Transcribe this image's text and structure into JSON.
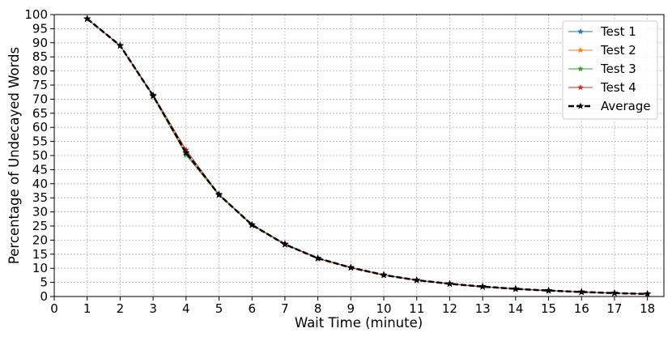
{
  "chart_data": {
    "type": "line",
    "title": "",
    "xlabel": "Wait Time (minute)",
    "ylabel": "Percentage of Undecayed Words",
    "xlim": [
      0,
      18.5
    ],
    "ylim": [
      0,
      100
    ],
    "xticks": [
      0,
      1,
      2,
      3,
      4,
      5,
      6,
      7,
      8,
      9,
      10,
      11,
      12,
      13,
      14,
      15,
      16,
      17,
      18
    ],
    "yticks": [
      0,
      5,
      10,
      15,
      20,
      25,
      30,
      35,
      40,
      45,
      50,
      55,
      60,
      65,
      70,
      75,
      80,
      85,
      90,
      95,
      100
    ],
    "grid": true,
    "legend_position": "upper right",
    "x": [
      1,
      2,
      3,
      4,
      5,
      6,
      7,
      8,
      9,
      10,
      11,
      12,
      13,
      14,
      15,
      16,
      17,
      18
    ],
    "series": [
      {
        "name": "Test 1",
        "color": "#1f77b4",
        "marker": "star",
        "line_style": "solid",
        "values": [
          98.5,
          89.0,
          71.0,
          51.0,
          36.0,
          25.5,
          18.5,
          13.5,
          10.2,
          7.6,
          5.8,
          4.5,
          3.5,
          2.7,
          2.1,
          1.6,
          1.2,
          0.9
        ]
      },
      {
        "name": "Test 2",
        "color": "#ff7f0e",
        "marker": "star",
        "line_style": "solid",
        "values": [
          98.5,
          89.0,
          71.2,
          50.8,
          36.3,
          25.4,
          18.6,
          13.6,
          10.3,
          7.6,
          5.8,
          4.5,
          3.5,
          2.7,
          2.1,
          1.6,
          1.2,
          0.9
        ]
      },
      {
        "name": "Test 3",
        "color": "#2ca02c",
        "marker": "star",
        "line_style": "solid",
        "values": [
          98.5,
          89.0,
          71.0,
          50.2,
          36.0,
          25.3,
          18.4,
          13.5,
          10.2,
          7.6,
          5.8,
          4.5,
          3.5,
          2.7,
          2.1,
          1.6,
          1.2,
          0.9
        ]
      },
      {
        "name": "Test 4",
        "color": "#d62728",
        "marker": "star",
        "line_style": "solid",
        "values": [
          98.5,
          89.0,
          71.5,
          52.0,
          36.2,
          25.5,
          18.7,
          13.6,
          10.3,
          7.7,
          5.8,
          4.5,
          3.5,
          2.7,
          2.1,
          1.6,
          1.2,
          0.9
        ]
      },
      {
        "name": "Average",
        "color": "#000000",
        "marker": "star",
        "line_style": "dashed",
        "values": [
          98.5,
          89.0,
          71.2,
          51.0,
          36.1,
          25.4,
          18.5,
          13.55,
          10.25,
          7.62,
          5.8,
          4.5,
          3.5,
          2.7,
          2.1,
          1.6,
          1.2,
          0.9
        ]
      }
    ]
  }
}
